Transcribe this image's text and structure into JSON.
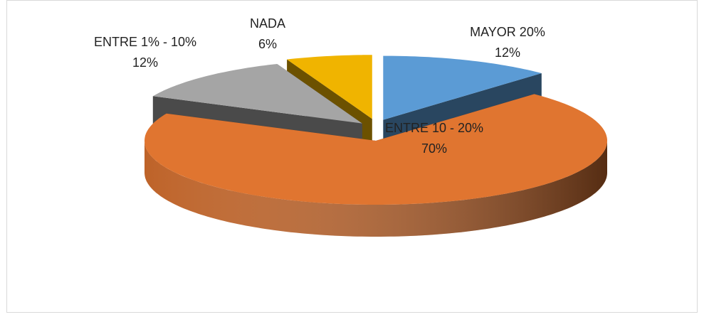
{
  "chart_data": {
    "type": "pie3d",
    "categories": [
      "MAYOR 20%",
      "ENTRE 10 - 20%",
      "ENTRE 1% - 10%",
      "NADA"
    ],
    "values": [
      12,
      70,
      12,
      6
    ],
    "value_labels": [
      "12%",
      "70%",
      "12%",
      "6%"
    ],
    "colors": [
      "#5b9bd5",
      "#e07530",
      "#a5a5a5",
      "#f0b400"
    ]
  }
}
